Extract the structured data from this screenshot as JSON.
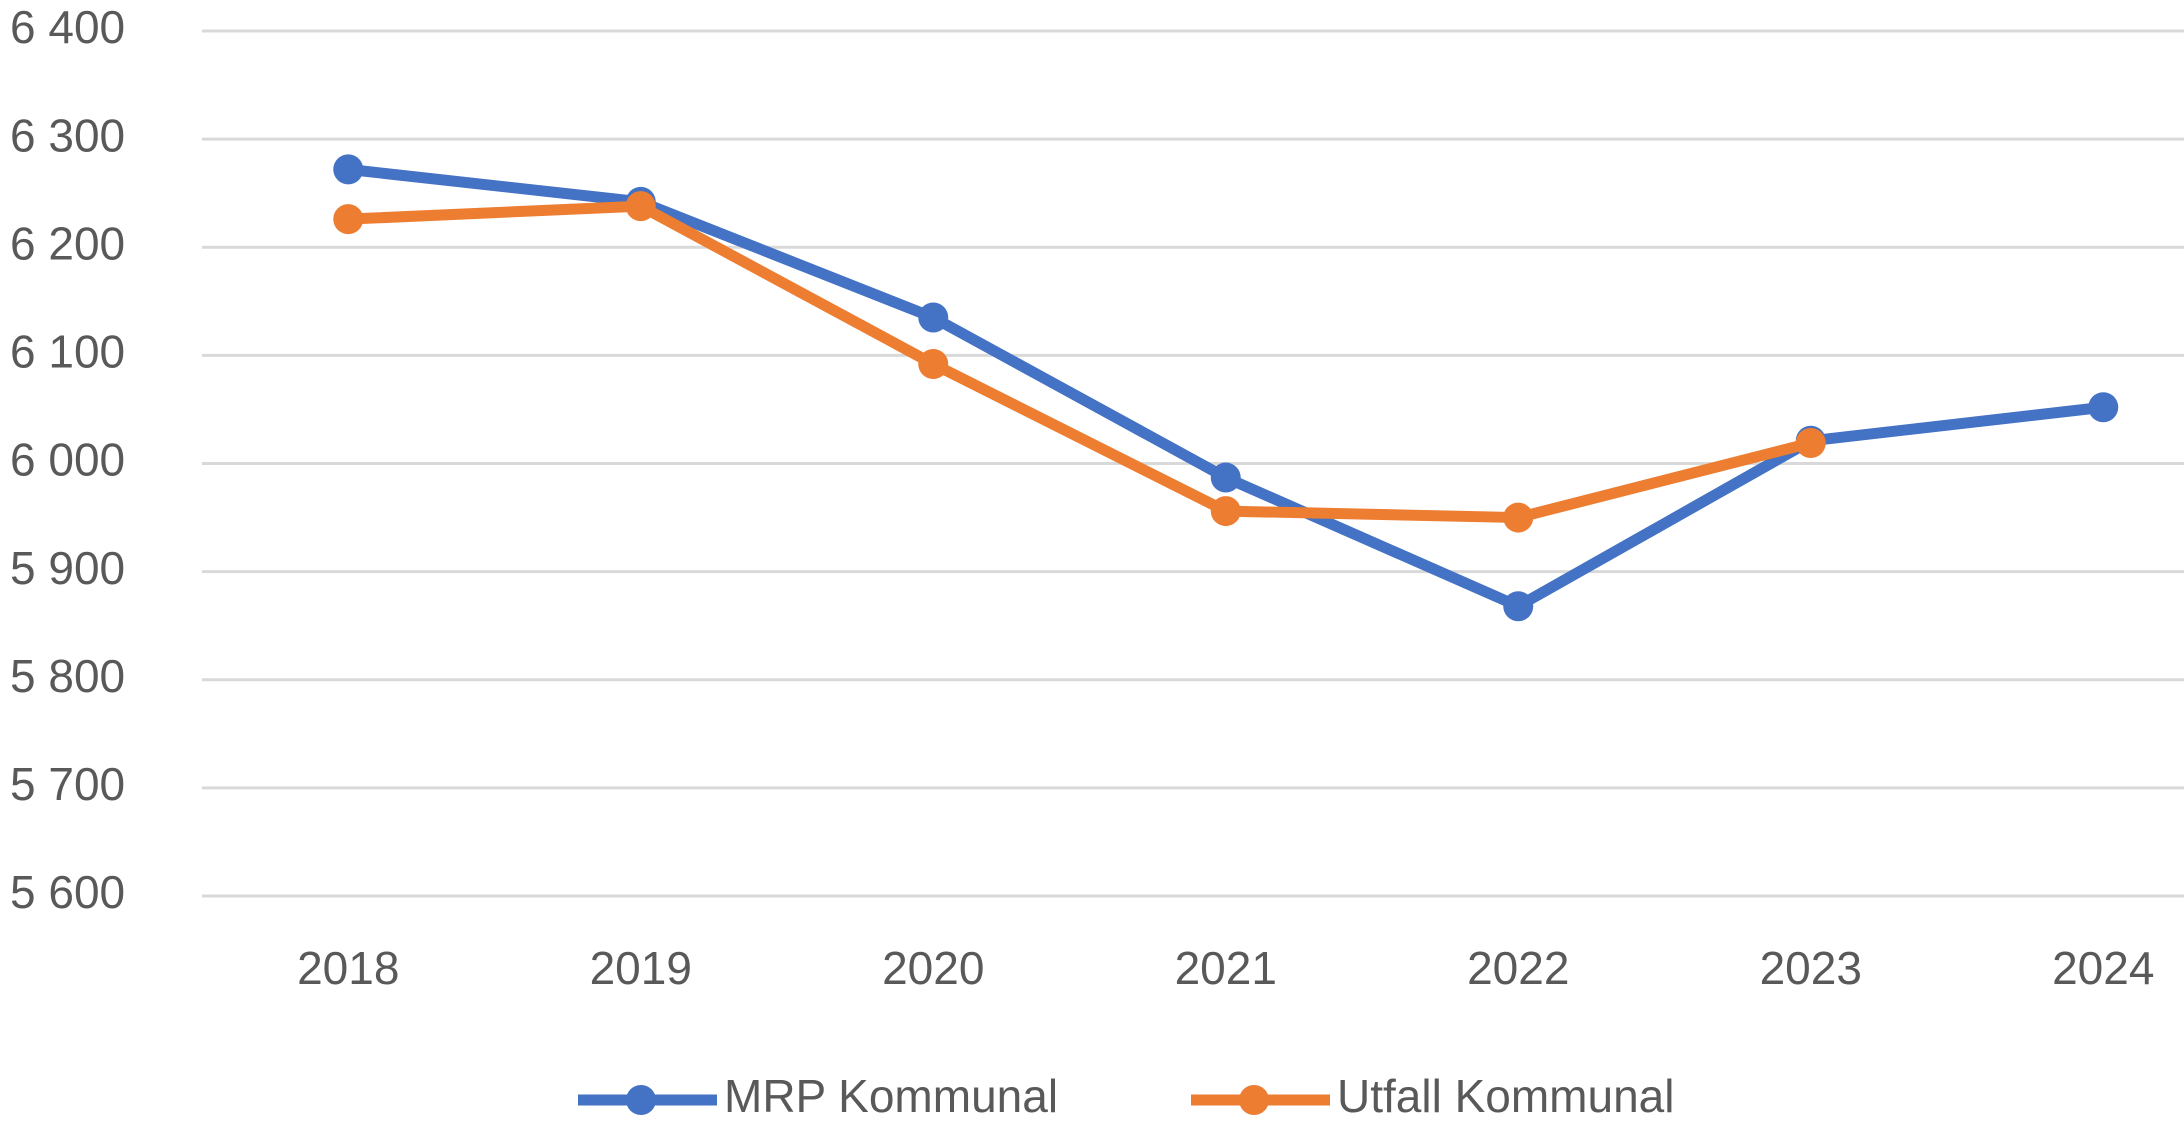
{
  "chart_data": {
    "type": "line",
    "categories": [
      "2018",
      "2019",
      "2020",
      "2021",
      "2022",
      "2023",
      "2024"
    ],
    "series": [
      {
        "name": "MRP Kommunal",
        "color": "#4472c4",
        "values": [
          6272,
          6242,
          6135,
          5987,
          5868,
          6021,
          6052
        ]
      },
      {
        "name": "Utfall Kommunal",
        "color": "#ed7d31",
        "values": [
          6226,
          6238,
          6092,
          5956,
          5950,
          6019,
          null
        ]
      }
    ],
    "ylim": [
      5600,
      6400
    ],
    "yticks": [
      {
        "value": 5600,
        "label": "5 600"
      },
      {
        "value": 5700,
        "label": "5 700"
      },
      {
        "value": 5800,
        "label": "5 800"
      },
      {
        "value": 5900,
        "label": "5 900"
      },
      {
        "value": 6000,
        "label": "6 000"
      },
      {
        "value": 6100,
        "label": "6 100"
      },
      {
        "value": 6200,
        "label": "6 200"
      },
      {
        "value": 6300,
        "label": "6 300"
      },
      {
        "value": 6400,
        "label": "6 400"
      }
    ],
    "grid": true,
    "legend": "bottom"
  }
}
